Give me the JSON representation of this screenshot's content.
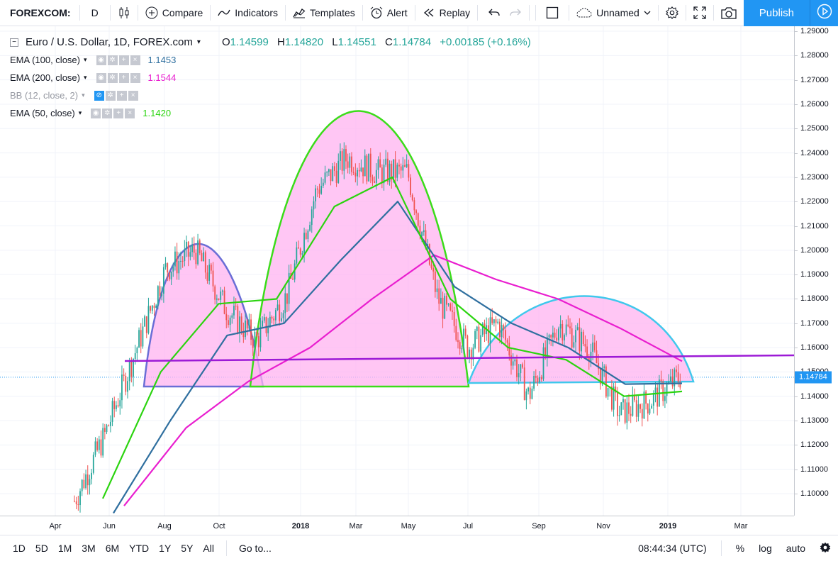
{
  "toolbar": {
    "symbol": "FOREXCOM:",
    "interval": "D",
    "compare": "Compare",
    "indicators": "Indicators",
    "templates": "Templates",
    "alert": "Alert",
    "replay": "Replay",
    "layout_name": "Unnamed",
    "publish": "Publish"
  },
  "legend": {
    "title": "Euro / U.S. Dollar, 1D, FOREX.com",
    "o_label": "O",
    "o": "1.14599",
    "h_label": "H",
    "h": "1.14820",
    "l_label": "L",
    "l": "1.14551",
    "c_label": "C",
    "c": "1.14784",
    "change": "+0.00185 (+0.16%)",
    "indicators": [
      {
        "label": "EMA (100, close)",
        "value": "1.1453",
        "color": "#2f6f9f"
      },
      {
        "label": "EMA (200, close)",
        "value": "1.1544",
        "color": "#e91ecf"
      },
      {
        "label": "BB (12, close, 2)",
        "value": "",
        "color": "#9598a1"
      },
      {
        "label": "EMA (50, close)",
        "value": "1.1420",
        "color": "#2bd40f"
      }
    ]
  },
  "price_axis": {
    "ticks": [
      "1.29000",
      "1.28000",
      "1.27000",
      "1.26000",
      "1.25000",
      "1.24000",
      "1.23000",
      "1.22000",
      "1.21000",
      "1.20000",
      "1.19000",
      "1.18000",
      "1.17000",
      "1.16000",
      "1.15000",
      "1.14000",
      "1.13000",
      "1.12000",
      "1.11000",
      "1.10000"
    ],
    "last_price": "1.14784"
  },
  "time_axis": {
    "ticks": [
      "Apr",
      "Jun",
      "Aug",
      "Oct",
      "2018",
      "Mar",
      "May",
      "Jul",
      "Sep",
      "Nov",
      "2019",
      "Mar"
    ]
  },
  "bottom": {
    "ranges": [
      "1D",
      "5D",
      "1M",
      "3M",
      "6M",
      "YTD",
      "1Y",
      "5Y",
      "All"
    ],
    "goto": "Go to...",
    "time": "08:44:34 (UTC)",
    "percent": "%",
    "log": "log",
    "auto": "auto"
  },
  "colors": {
    "accent": "#2196f3",
    "up_candle": "#26a69a",
    "down_candle": "#ef5350",
    "ema50": "#2bd40f",
    "ema100": "#2f6f9f",
    "ema200": "#e91ecf",
    "neckline": "#9c1ad6",
    "pattern_fill": "#ffb3f0"
  },
  "chart_data": {
    "type": "line",
    "y_axis": {
      "range": [
        1.092,
        1.292
      ]
    },
    "x_axis_labels": [
      "Apr",
      "Jun",
      "Aug",
      "Oct",
      "2018",
      "Mar",
      "May",
      "Jul",
      "Sep",
      "Nov",
      "2019",
      "Mar"
    ],
    "series": [
      {
        "name": "Euro / U.S. Dollar",
        "x": [
          "2017-05",
          "2017-06",
          "2017-07",
          "2017-08",
          "2017-09",
          "2017-10",
          "2017-11",
          "2017-12",
          "2018-01",
          "2018-02",
          "2018-03",
          "2018-04",
          "2018-05",
          "2018-06",
          "2018-07",
          "2018-08",
          "2018-09",
          "2018-10",
          "2018-11",
          "2018-12",
          "2019-01"
        ],
        "values": [
          1.097,
          1.124,
          1.158,
          1.192,
          1.2,
          1.176,
          1.163,
          1.181,
          1.225,
          1.238,
          1.232,
          1.232,
          1.18,
          1.16,
          1.17,
          1.14,
          1.17,
          1.16,
          1.133,
          1.138,
          1.148
        ]
      },
      {
        "name": "EMA (50, close)",
        "x": [
          "2017-06",
          "2017-08",
          "2017-10",
          "2017-12",
          "2018-02",
          "2018-04",
          "2018-06",
          "2018-08",
          "2018-10",
          "2018-12",
          "2019-01"
        ],
        "values": [
          1.098,
          1.15,
          1.178,
          1.18,
          1.218,
          1.23,
          1.18,
          1.16,
          1.155,
          1.14,
          1.142
        ]
      },
      {
        "name": "EMA (100, close)",
        "x": [
          "2017-06",
          "2017-08",
          "2017-10",
          "2017-12",
          "2018-02",
          "2018-04",
          "2018-06",
          "2018-08",
          "2018-10",
          "2018-12",
          "2019-01"
        ],
        "values": [
          1.092,
          1.13,
          1.165,
          1.17,
          1.196,
          1.22,
          1.185,
          1.17,
          1.16,
          1.145,
          1.1453
        ]
      },
      {
        "name": "EMA (200, close)",
        "x": [
          "2017-07",
          "2017-09",
          "2017-11",
          "2018-01",
          "2018-03",
          "2018-05",
          "2018-07",
          "2018-09",
          "2018-11",
          "2019-01"
        ],
        "values": [
          1.095,
          1.127,
          1.146,
          1.16,
          1.18,
          1.198,
          1.188,
          1.18,
          1.168,
          1.1544
        ]
      }
    ]
  }
}
